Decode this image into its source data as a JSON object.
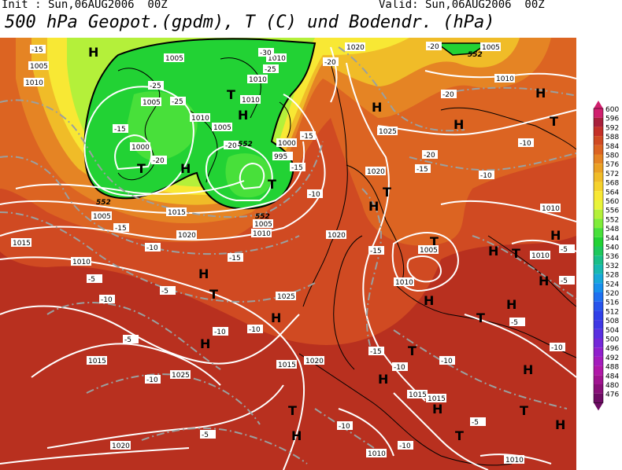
{
  "header": {
    "init": "Init : Sun,06AUG2006  00Z",
    "valid": "Valid: Sun,06AUG2006  00Z",
    "title": "500 hPa Geopot.(gpdm), T (C) und Bodendr. (hPa)"
  },
  "legend": {
    "levels": [
      "600",
      "596",
      "592",
      "588",
      "584",
      "580",
      "576",
      "572",
      "568",
      "564",
      "560",
      "556",
      "552",
      "548",
      "544",
      "540",
      "536",
      "532",
      "528",
      "524",
      "520",
      "516",
      "512",
      "508",
      "504",
      "500",
      "496",
      "492",
      "488",
      "484",
      "480",
      "476"
    ],
    "colors": [
      "#d0206e",
      "#a8203c",
      "#c43028",
      "#d04a22",
      "#dc6422",
      "#e58424",
      "#eaa124",
      "#f0bc28",
      "#f5d22c",
      "#f8e834",
      "#e8f43a",
      "#b4f03a",
      "#7fec3a",
      "#48e03a",
      "#22d234",
      "#1ec85c",
      "#1abe88",
      "#18b8b0",
      "#18a8d8",
      "#1890ec",
      "#2070f0",
      "#2854ec",
      "#3040e8",
      "#4038e4",
      "#5a30e0",
      "#7428d8",
      "#9020cc",
      "#a41cbc",
      "#b018a8",
      "#a01490",
      "#881078",
      "#6e0c64"
    ]
  },
  "map": {
    "high_label": "H",
    "low_label": "T",
    "pressure_labels": [
      "1005",
      "1010",
      "1015",
      "1020",
      "1025",
      "1000",
      "995",
      "1010",
      "1005",
      "1020",
      "1015",
      "1025",
      "1020",
      "1010",
      "1005",
      "1010",
      "1015",
      "1010",
      "1020",
      "1025",
      "1015",
      "1020",
      "1015",
      "1020",
      "1010",
      "1010",
      "1005",
      "1000",
      "1025",
      "1010",
      "1010",
      "1005",
      "1010",
      "1010",
      "1005"
    ],
    "temperature_labels": [
      "-15",
      "-20",
      "-25",
      "-25",
      "-20",
      "-15",
      "-25",
      "-20",
      "-10",
      "-15",
      "-10",
      "-15",
      "-5",
      "-5",
      "-10",
      "-5",
      "-10",
      "-10",
      "-5",
      "-10",
      "-15",
      "-10",
      "-5",
      "-10",
      "-5",
      "-15",
      "-20",
      "-10",
      "-15",
      "-20",
      "-10",
      "-10",
      "-5",
      "-10",
      "-5",
      "-15",
      "-10",
      "-10",
      "-25",
      "-30",
      "-15",
      "-20",
      "-15",
      "-10",
      "-5",
      "-10"
    ],
    "height_labels": [
      "552",
      "552",
      "552",
      "552"
    ]
  }
}
